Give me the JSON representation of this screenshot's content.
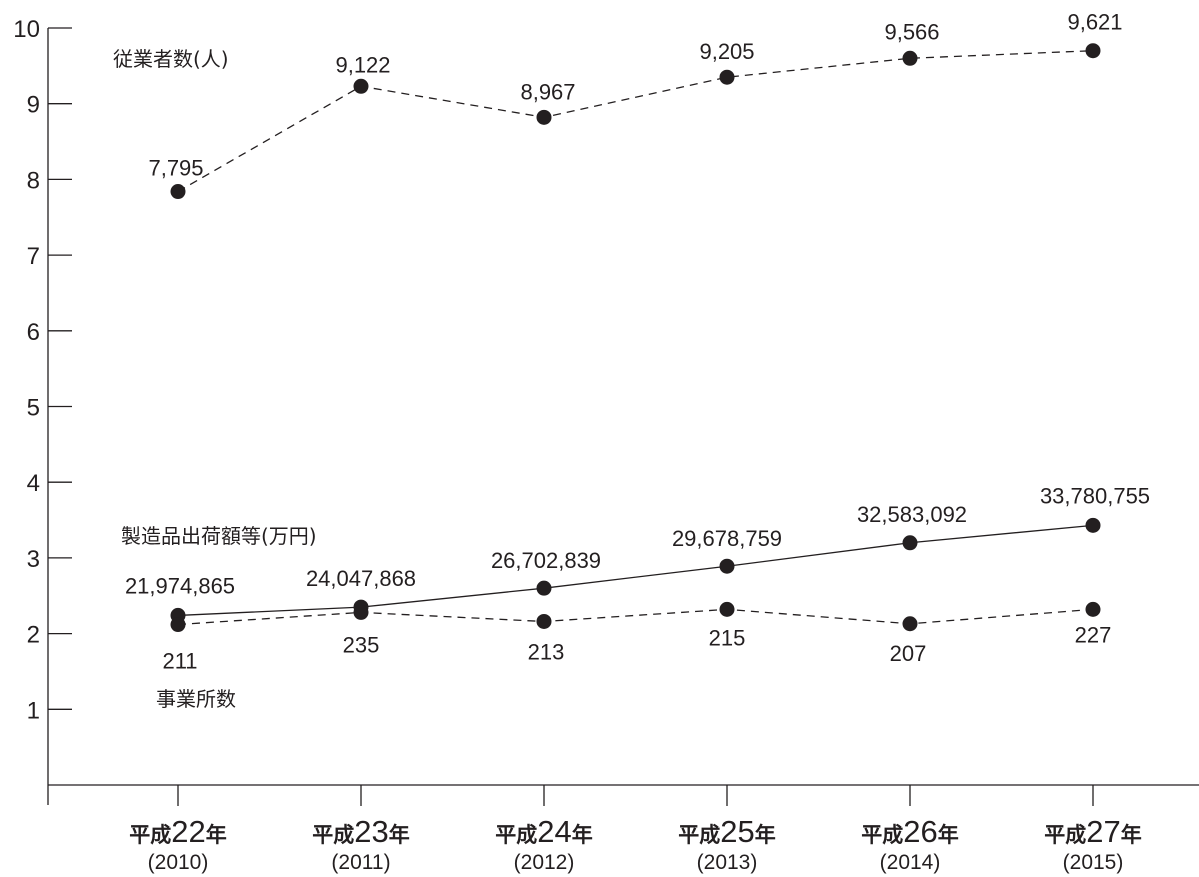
{
  "chart_data": {
    "type": "line",
    "x": [
      {
        "era_prefix": "平成",
        "era_number": "22",
        "era_suffix": "年",
        "year_label": "(2010)"
      },
      {
        "era_prefix": "平成",
        "era_number": "23",
        "era_suffix": "年",
        "year_label": "(2011)"
      },
      {
        "era_prefix": "平成",
        "era_number": "24",
        "era_suffix": "年",
        "year_label": "(2012)"
      },
      {
        "era_prefix": "平成",
        "era_number": "25",
        "era_suffix": "年",
        "year_label": "(2013)"
      },
      {
        "era_prefix": "平成",
        "era_number": "26",
        "era_suffix": "年",
        "year_label": "(2014)"
      },
      {
        "era_prefix": "平成",
        "era_number": "27",
        "era_suffix": "年",
        "year_label": "(2015)"
      }
    ],
    "y_ticks": [
      "1",
      "2",
      "3",
      "4",
      "5",
      "6",
      "7",
      "8",
      "9",
      "10"
    ],
    "ylim": [
      0,
      10
    ],
    "series": [
      {
        "name": "従業者数(人)",
        "line_style": "dashed",
        "values": [
          7795,
          9122,
          8967,
          9205,
          9566,
          9621
        ],
        "labels": [
          "7,795",
          "9,122",
          "8,967",
          "9,205",
          "9,566",
          "9,621"
        ],
        "plotted": [
          7.84,
          9.23,
          8.82,
          9.35,
          9.6,
          9.7
        ]
      },
      {
        "name": "製造品出荷額等(万円)",
        "line_style": "solid",
        "values": [
          21974865,
          24047868,
          26702839,
          29678759,
          32583092,
          33780755
        ],
        "labels": [
          "21,974,865",
          "24,047,868",
          "26,702,839",
          "29,678,759",
          "32,583,092",
          "33,780,755"
        ],
        "plotted": [
          2.24,
          2.35,
          2.6,
          2.89,
          3.2,
          3.43
        ]
      },
      {
        "name": "事業所数",
        "line_style": "dashed",
        "values": [
          211,
          235,
          213,
          215,
          207,
          227
        ],
        "labels": [
          "211",
          "235",
          "213",
          "215",
          "207",
          "227"
        ],
        "plotted": [
          2.12,
          2.28,
          2.16,
          2.32,
          2.13,
          2.32
        ]
      }
    ],
    "legend": "inline labels",
    "grid": false,
    "colors": {
      "ink": "#231f20",
      "background": "#ffffff"
    }
  }
}
